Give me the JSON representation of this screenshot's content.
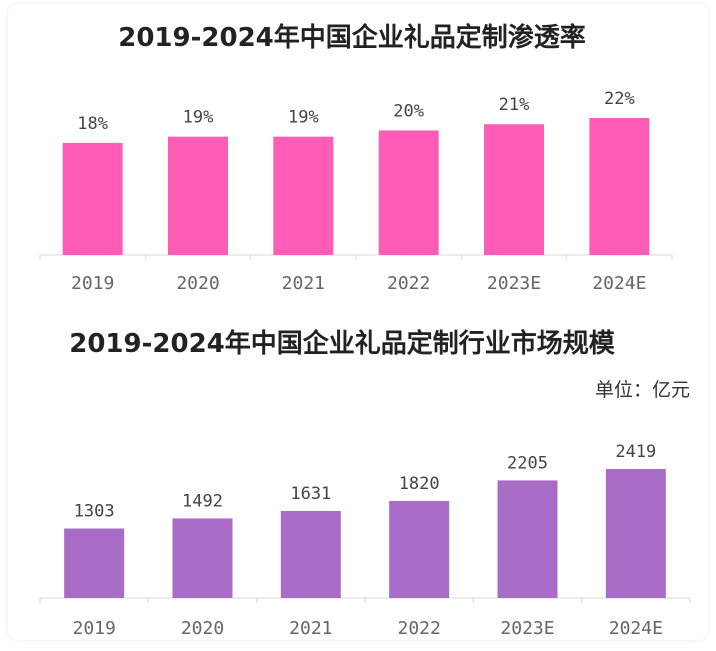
{
  "chart_data": [
    {
      "type": "bar",
      "title": "2019-2024年中国企业礼品定制渗透率",
      "categories": [
        "2019",
        "2020",
        "2021",
        "2022",
        "2023E",
        "2024E"
      ],
      "values": [
        18,
        19,
        19,
        20,
        21,
        22
      ],
      "data_labels": [
        "18%",
        "19%",
        "19%",
        "20%",
        "21%",
        "22%"
      ],
      "ylim": [
        0,
        22
      ],
      "bar_color": "#ff5cb8",
      "grid": false,
      "legend": "none"
    },
    {
      "type": "bar",
      "title": "2019-2024年中国企业礼品定制行业市场规模",
      "unit_label": "单位：亿元",
      "categories": [
        "2019",
        "2020",
        "2021",
        "2022",
        "2023E",
        "2024E"
      ],
      "values": [
        1303,
        1492,
        1631,
        1820,
        2205,
        2419
      ],
      "data_labels": [
        "1303",
        "1492",
        "1631",
        "1820",
        "2205",
        "2419"
      ],
      "ylim": [
        0,
        2419
      ],
      "bar_color": "#a86cc6",
      "grid": false,
      "legend": "none"
    }
  ]
}
